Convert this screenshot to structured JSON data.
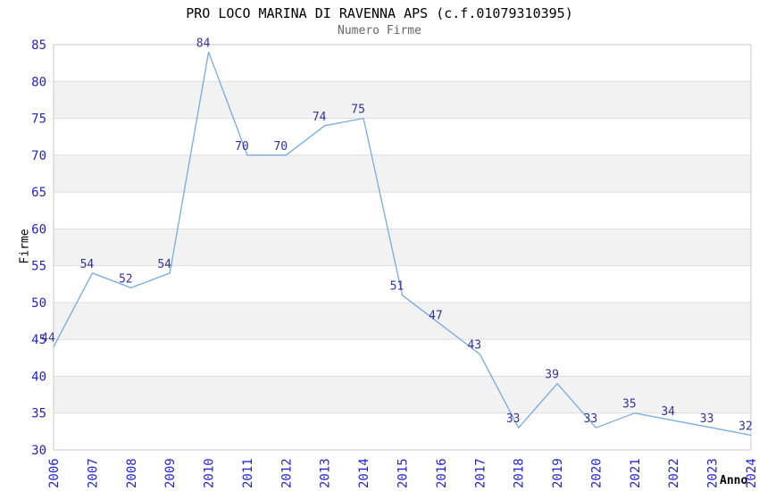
{
  "chart_data": {
    "type": "line",
    "title": "PRO LOCO MARINA DI RAVENNA APS (c.f.01079310395)",
    "subtitle": "Numero Firme",
    "xlabel": "Anno",
    "ylabel": "Firme",
    "categories": [
      "2006",
      "2007",
      "2008",
      "2009",
      "2010",
      "2011",
      "2012",
      "2013",
      "2014",
      "2015",
      "2016",
      "2017",
      "2018",
      "2019",
      "2020",
      "2021",
      "2022",
      "2023",
      "2024"
    ],
    "series": [
      {
        "name": "Numero Firme",
        "values": [
          44,
          54,
          52,
          54,
          84,
          70,
          70,
          74,
          75,
          51,
          47,
          43,
          33,
          39,
          33,
          35,
          34,
          33,
          32
        ]
      }
    ],
    "ylim": [
      30,
      85
    ],
    "ytick_step": 5,
    "grid": true,
    "legend": "none",
    "data_labels": true,
    "colors": {
      "line": "#76abe3",
      "data_label": "#333399",
      "axis_tick": "#2323cc",
      "title": "#000000",
      "subtitle": "#666666",
      "axis_title": "#000000",
      "plot_border": "#c9c9c9",
      "grid_line": "#dddddd",
      "band": "#f2f2f2",
      "background": "#ffffff"
    }
  }
}
